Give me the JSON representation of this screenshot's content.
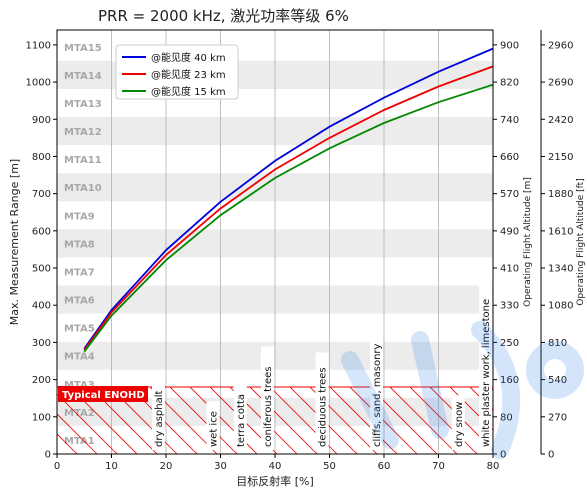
{
  "chart_data": {
    "type": "line",
    "title": "PRR = 2000 kHz, 激光功率等级 6%",
    "xlabel": "目标反射率 [%]",
    "ylabel": "Max. Measurement Range [m]",
    "y2label": "Operating Flight Altitude [m]",
    "y3label": "Operating Flight Altitude [ft]",
    "xlim": [
      0,
      80
    ],
    "ylim": [
      0,
      1140
    ],
    "x_ticks": [
      "0",
      "10",
      "20",
      "30",
      "40",
      "50",
      "60",
      "70",
      "80"
    ],
    "y_ticks": [
      "0",
      "100",
      "200",
      "300",
      "400",
      "500",
      "600",
      "700",
      "800",
      "900",
      "1000",
      "1100"
    ],
    "y2_ticks": [
      "0",
      "80",
      "160",
      "250",
      "330",
      "410",
      "490",
      "570",
      "660",
      "740",
      "820",
      "900"
    ],
    "y3_ticks": [
      "0",
      "270",
      "540",
      "810",
      "1080",
      "1340",
      "1610",
      "1880",
      "2150",
      "2420",
      "2690",
      "2960"
    ],
    "grid": true,
    "legend_position": "top-left",
    "series": [
      {
        "name": "@能见度 40 km",
        "color": "#0000dd",
        "x": [
          5,
          10,
          20,
          30,
          40,
          50,
          60,
          70,
          80
        ],
        "y": [
          283,
          387,
          548,
          678,
          788,
          880,
          958,
          1028,
          1090
        ]
      },
      {
        "name": "@能见度 23 km",
        "color": "#ee0000",
        "x": [
          5,
          10,
          20,
          30,
          40,
          50,
          60,
          70,
          80
        ],
        "y": [
          279,
          381,
          535,
          660,
          765,
          850,
          925,
          988,
          1042
        ]
      },
      {
        "name": "@能见度 15 km",
        "color": "#008800",
        "x": [
          5,
          10,
          20,
          30,
          40,
          50,
          60,
          70,
          80
        ],
        "y": [
          275,
          372,
          521,
          642,
          742,
          822,
          890,
          946,
          993
        ]
      }
    ],
    "mta_zones": [
      "MTA1",
      "MTA2",
      "MTA3",
      "MTA4",
      "MTA5",
      "MTA6",
      "MTA7",
      "MTA8",
      "MTA9",
      "MTA10",
      "MTA11",
      "MTA12",
      "MTA13",
      "MTA14",
      "MTA15"
    ],
    "eye_safety_limit": {
      "label": "Typical ENOHD",
      "range": 180,
      "color": "#ee0000"
    },
    "surfaces": [
      {
        "x": 20,
        "label": "dry asphalt"
      },
      {
        "x": 30,
        "label": "wet ice"
      },
      {
        "x": 35,
        "label": "terra cotta"
      },
      {
        "x": 40,
        "label": "coniferous trees"
      },
      {
        "x": 50,
        "label": "deciduous trees"
      },
      {
        "x": 60,
        "label": "cliffs, sand, masonry"
      },
      {
        "x": 75,
        "label": "dry snow"
      },
      {
        "x": 80,
        "label": "white plaster work, limestone"
      }
    ]
  }
}
